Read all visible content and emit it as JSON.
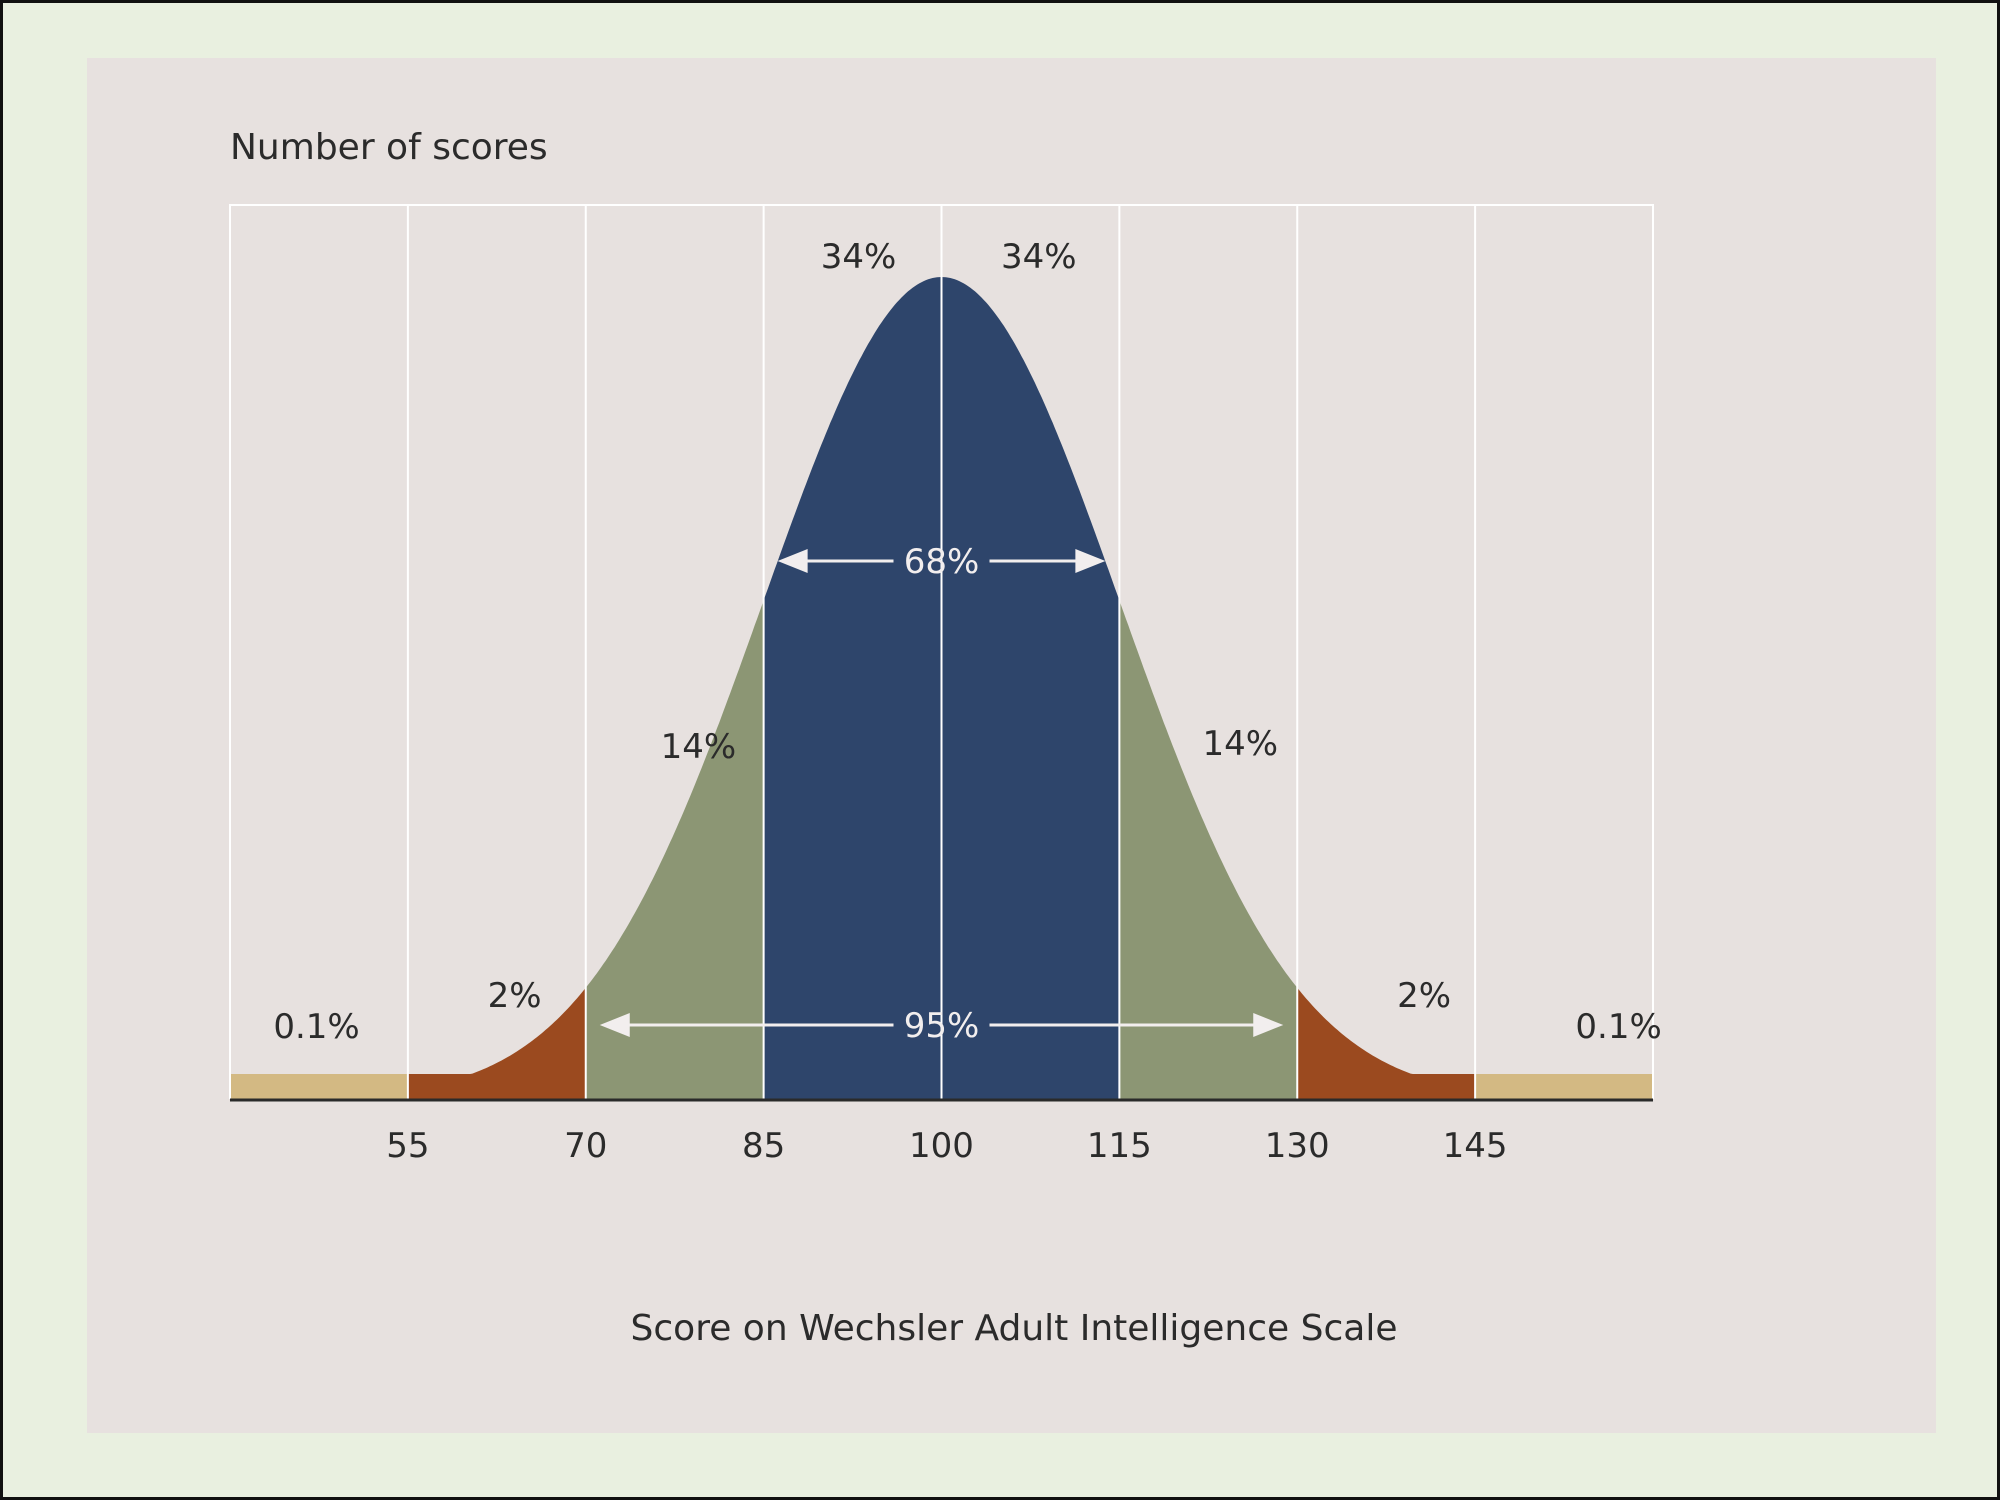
{
  "chart_data": {
    "type": "area",
    "ylabel": "Number of scores",
    "xlabel": "Score on Wechsler Adult Intelligence Scale",
    "distribution": "normal",
    "mean": 100,
    "sd": 15,
    "xlim": [
      40,
      160
    ],
    "x_ticks": [
      55,
      70,
      85,
      100,
      115,
      130,
      145
    ],
    "x_tick_labels": [
      "55",
      "70",
      "85",
      "100",
      "115",
      "130",
      "145"
    ],
    "grid": "vertical lines at each tick",
    "bands": [
      {
        "range": [
          40,
          55
        ],
        "label": "0.1%",
        "color": "#d3b983"
      },
      {
        "range": [
          55,
          70
        ],
        "label": "2%",
        "color": "#9b4a1f"
      },
      {
        "range": [
          70,
          85
        ],
        "label": "14%",
        "color": "#8c9674"
      },
      {
        "range": [
          85,
          100
        ],
        "label": "34%",
        "color": "#2e456b"
      },
      {
        "range": [
          100,
          115
        ],
        "label": "34%",
        "color": "#2e456b"
      },
      {
        "range": [
          115,
          130
        ],
        "label": "14%",
        "color": "#8c9674"
      },
      {
        "range": [
          130,
          145
        ],
        "label": "2%",
        "color": "#9b4a1f"
      },
      {
        "range": [
          145,
          160
        ],
        "label": "0.1%",
        "color": "#d3b983"
      }
    ],
    "annotations": [
      {
        "label": "68%",
        "from": 85,
        "to": 115
      },
      {
        "label": "95%",
        "from": 70,
        "to": 130
      }
    ]
  }
}
